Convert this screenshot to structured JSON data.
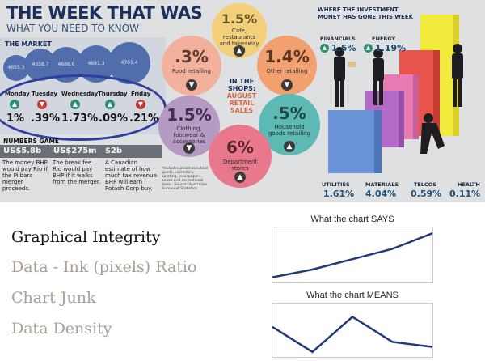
{
  "newspaper": {
    "title": "THE WEEK THAT WAS",
    "subtitle": "WHAT YOU NEED TO KNOW",
    "market": {
      "heading": "THE MARKET",
      "bubbles": [
        "4655.3",
        "4658.7",
        "4686.6",
        "4691.3",
        "4701.4"
      ],
      "days": [
        {
          "day": "Monday",
          "value": "1%",
          "dir": "up"
        },
        {
          "day": "Tuesday",
          "value": ".39%",
          "dir": "down"
        },
        {
          "day": "Wednesday",
          "value": "1.73%",
          "dir": "up"
        },
        {
          "day": "Thursday",
          "value": ".09%",
          "dir": "up"
        },
        {
          "day": "Friday",
          "value": ".21%",
          "dir": "down"
        }
      ]
    },
    "numbers_game": {
      "heading": "NUMBERS GAME",
      "items": [
        {
          "value": "US$5.8b",
          "text": "The money BHP would pay Rio if the Pilbara merger proceeds."
        },
        {
          "value": "US$275m",
          "text": "The break fee Rio would pay BHP if it walks from the merger."
        },
        {
          "value": "$2b",
          "text": "A Canadian estimate of how much tax revenue BHP will earn Potash Corp buy."
        }
      ]
    },
    "shops": {
      "heading_1": "IN THE",
      "heading_2": "SHOPS:",
      "heading_3": "AUGUST",
      "heading_4": "RETAIL",
      "heading_5": "SALES",
      "bubbles": [
        {
          "value": "1.5%",
          "label": "Cafe, restaurants and takeaway food",
          "color": "#f2cf78"
        },
        {
          "value": ".3%",
          "label": "Food retailing",
          "color": "#f3b09b"
        },
        {
          "value": "1.4%",
          "label": "Other retailing",
          "color": "#f2a070"
        },
        {
          "value": "1.5%",
          "label": "Clothing, footwear & accessories",
          "color": "#b59ac4"
        },
        {
          "value": ".5%",
          "label": "Household goods retailing",
          "color": "#5cb9b3"
        },
        {
          "value": "6%",
          "label": "Department stores",
          "color": "#e9788c"
        }
      ],
      "footnote": "*Includes pharmaceutical goods, cosmetics, sporting, newspapers, books and recreational items. Source: Australian Bureau of Statistics"
    },
    "investment": {
      "heading_1": "WHERE THE INVESTMENT",
      "heading_2": "MONEY HAS GONE THIS WEEK",
      "sectors": [
        {
          "name": "FINANCIALS",
          "value": "1.5%"
        },
        {
          "name": "ENERGY",
          "value": "1.19%"
        },
        {
          "name": "UTILITIES",
          "value": "1.61%"
        },
        {
          "name": "MATERIALS",
          "value": "4.04%"
        },
        {
          "name": "TELCOS",
          "value": "0.59%"
        },
        {
          "name": "HEALTH",
          "value": "0.11%"
        }
      ],
      "colors": {
        "yellow": "#f2ea3c",
        "red": "#e8534b",
        "pink": "#e77bb3",
        "magenta": "#b46bc7",
        "blue": "#6a93d8"
      }
    },
    "highlight_color": "#2f3e9e"
  },
  "slide": {
    "menu": [
      {
        "label": "Graphical Integrity",
        "color": "#111111"
      },
      {
        "label": "Data - Ink (pixels) Ratio",
        "color": "#a89f95"
      },
      {
        "label": "Chart Junk",
        "color": "#a89f95"
      },
      {
        "label": "Data Density",
        "color": "#a89f95"
      }
    ],
    "charts": [
      {
        "title": "What the chart SAYS",
        "chart_data": {
          "type": "line",
          "title": "What the chart SAYS",
          "x": [
            0,
            1,
            2,
            3,
            4
          ],
          "y": [
            1,
            2.5,
            4.5,
            6.5,
            9.5
          ],
          "ylim": [
            0,
            10
          ]
        }
      },
      {
        "title": "What the chart MEANS",
        "chart_data": {
          "type": "line",
          "title": "What the chart MEANS",
          "x": [
            0,
            1,
            2,
            3,
            4
          ],
          "y": [
            6,
            1,
            8,
            3,
            2
          ],
          "ylim": [
            0,
            10
          ]
        }
      }
    ],
    "line_color": "#233a7a"
  }
}
